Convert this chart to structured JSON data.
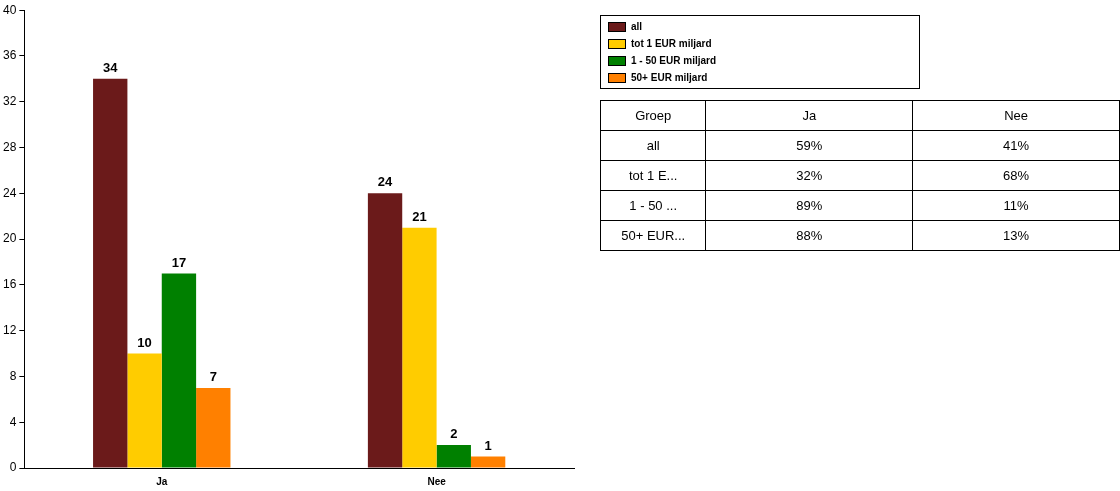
{
  "chart_data": [
    {
      "type": "bar",
      "categories": [
        "Ja",
        "Nee"
      ],
      "series": [
        {
          "name": "all",
          "color": "#6b1a1a",
          "values": [
            34,
            24
          ]
        },
        {
          "name": "tot 1 EUR miljard",
          "color": "#ffcc00",
          "values": [
            10,
            21
          ]
        },
        {
          "name": "1 - 50 EUR miljard",
          "color": "#008000",
          "values": [
            17,
            2
          ]
        },
        {
          "name": "50+ EUR miljard",
          "color": "#ff8000",
          "values": [
            7,
            1
          ]
        }
      ],
      "ylim": [
        0,
        40
      ],
      "yticks": [
        0,
        4,
        8,
        12,
        16,
        20,
        24,
        28,
        32,
        36,
        40
      ],
      "grid": false,
      "legend": "top right",
      "data_labels": true
    },
    {
      "type": "other",
      "ylabel": "Groep",
      "categories": [
        "Ja",
        "Nee"
      ],
      "y_categories": [
        "all",
        "tot 1 E...",
        "1 - 50 ...",
        "50+ EUR..."
      ],
      "cell_labels": [
        [
          "59%",
          "41%"
        ],
        [
          "32%",
          "68%"
        ],
        [
          "89%",
          "11%"
        ],
        [
          "88%",
          "13%"
        ]
      ]
    }
  ]
}
